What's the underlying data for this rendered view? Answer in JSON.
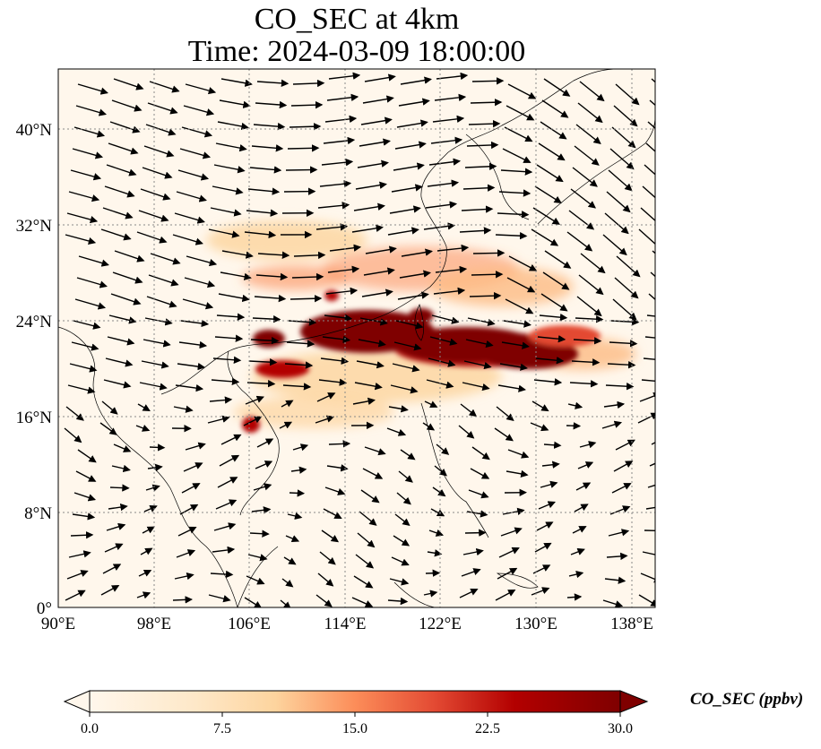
{
  "title": {
    "line1": "CO_SEC at 4km",
    "line2": "Time: 2024-03-09 18:00:00"
  },
  "map": {
    "lon_range": [
      90,
      140
    ],
    "lat_range": [
      0,
      45
    ],
    "lon_ticks": [
      "90°E",
      "98°E",
      "106°E",
      "114°E",
      "122°E",
      "130°E",
      "138°E"
    ],
    "lat_ticks": [
      "0°",
      "8°N",
      "16°N",
      "24°N",
      "32°N",
      "40°N"
    ],
    "gridlines": "dotted",
    "field": "CO_SEC",
    "vectors": "wind arrows"
  },
  "colorbar": {
    "label": "CO_SEC (ppbv)",
    "ticks": [
      "0.0",
      "7.5",
      "15.0",
      "22.5",
      "30.0"
    ],
    "range": [
      0,
      30
    ],
    "colormap": "OrRd",
    "extend": "both"
  },
  "colors": {
    "low": "#fff7ec",
    "mid": "#fc8d59",
    "high": "#7f0000"
  }
}
